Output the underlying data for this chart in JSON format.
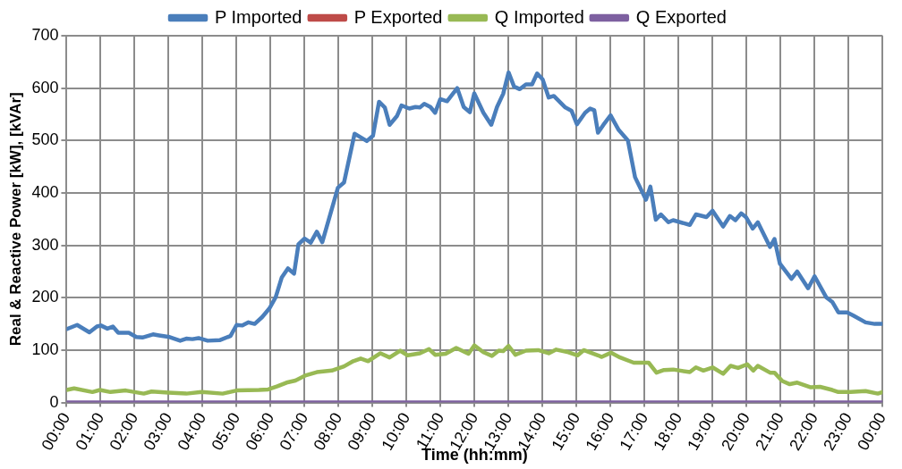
{
  "chart_data": {
    "type": "line",
    "xlabel": "Time (hh:mm)",
    "ylabel": "Real & Reactive Power [kW], [kVAr]",
    "xlim": [
      0,
      24
    ],
    "xticks": [
      {
        "value": 0,
        "label": "00:00"
      },
      {
        "value": 1,
        "label": "01:00"
      },
      {
        "value": 2,
        "label": "02:00"
      },
      {
        "value": 3,
        "label": "03:00"
      },
      {
        "value": 4,
        "label": "04:00"
      },
      {
        "value": 5,
        "label": "05:00"
      },
      {
        "value": 6,
        "label": "06:00"
      },
      {
        "value": 7,
        "label": "07:00"
      },
      {
        "value": 8,
        "label": "08:00"
      },
      {
        "value": 9,
        "label": "09:00"
      },
      {
        "value": 10,
        "label": "10:00"
      },
      {
        "value": 11,
        "label": "11:00"
      },
      {
        "value": 12,
        "label": "12:00"
      },
      {
        "value": 13,
        "label": "13:00"
      },
      {
        "value": 14,
        "label": "14:00"
      },
      {
        "value": 15,
        "label": "15:00"
      },
      {
        "value": 16,
        "label": "16:00"
      },
      {
        "value": 17,
        "label": "17:00"
      },
      {
        "value": 18,
        "label": "18:00"
      },
      {
        "value": 19,
        "label": "19:00"
      },
      {
        "value": 20,
        "label": "20:00"
      },
      {
        "value": 21,
        "label": "21:00"
      },
      {
        "value": 22,
        "label": "22:00"
      },
      {
        "value": 23,
        "label": "23:00"
      },
      {
        "value": 24,
        "label": "00:00"
      }
    ],
    "ylim": [
      0,
      700
    ],
    "yticks": [
      0,
      100,
      200,
      300,
      400,
      500,
      600,
      700
    ],
    "grid": true,
    "legend": "top",
    "marker": "none",
    "line_style": "solid",
    "series": [
      {
        "name": "P Imported",
        "color": "#4a7ebb",
        "x": [
          0,
          0.31,
          0.67,
          0.89,
          1.01,
          1.2,
          1.36,
          1.52,
          1.83,
          2.05,
          2.23,
          2.54,
          2.72,
          3.03,
          3.34,
          3.52,
          3.7,
          3.88,
          4.15,
          4.5,
          4.82,
          5,
          5.17,
          5.35,
          5.53,
          5.75,
          5.97,
          6.15,
          6.33,
          6.51,
          6.69,
          6.82,
          7,
          7.18,
          7.36,
          7.52,
          7.98,
          8.16,
          8.47,
          8.83,
          9.01,
          9.19,
          9.36,
          9.5,
          9.72,
          9.85,
          10.08,
          10.26,
          10.39,
          10.52,
          10.7,
          10.84,
          10.99,
          11.19,
          11.49,
          11.68,
          11.86,
          11.99,
          12.26,
          12.49,
          12.66,
          12.84,
          13,
          13.16,
          13.33,
          13.51,
          13.69,
          13.84,
          14,
          14.18,
          14.33,
          14.67,
          14.85,
          15.01,
          15.25,
          15.4,
          15.52,
          15.63,
          15.79,
          16,
          16.24,
          16.51,
          16.72,
          17.04,
          17.17,
          17.33,
          17.48,
          17.7,
          17.84,
          18.33,
          18.51,
          18.82,
          19,
          19.31,
          19.51,
          19.67,
          19.84,
          19.98,
          20.18,
          20.33,
          20.69,
          20.82,
          20.98,
          21.32,
          21.49,
          21.81,
          22,
          22.34,
          22.52,
          22.7,
          22.96,
          23.14,
          23.5,
          23.77,
          24
        ],
        "values": [
          140,
          148,
          134,
          145,
          147,
          141,
          145,
          133,
          133,
          125,
          124,
          130,
          128,
          125,
          118,
          122,
          121,
          123,
          118,
          119,
          127,
          148,
          147,
          153,
          150,
          163,
          180,
          201,
          239,
          256,
          246,
          302,
          313,
          305,
          326,
          306,
          410,
          420,
          513,
          499,
          509,
          574,
          563,
          530,
          547,
          567,
          561,
          564,
          563,
          570,
          564,
          553,
          579,
          575,
          600,
          564,
          554,
          590,
          553,
          530,
          564,
          589,
          630,
          603,
          598,
          607,
          607,
          628,
          617,
          582,
          585,
          563,
          557,
          531,
          553,
          561,
          558,
          515,
          530,
          548,
          520,
          500,
          430,
          387,
          412,
          349,
          359,
          344,
          348,
          339,
          359,
          354,
          366,
          336,
          356,
          348,
          361,
          354,
          332,
          344,
          297,
          312,
          265,
          236,
          250,
          218,
          241,
          201,
          192,
          172,
          172,
          166,
          153,
          150,
          150
        ]
      },
      {
        "name": "P Exported",
        "color": "#be4b48"
      },
      {
        "name": "Q Imported",
        "color": "#98b954",
        "x": [
          0,
          0.22,
          0.76,
          0.98,
          1.29,
          1.74,
          2.27,
          2.5,
          2.99,
          3.52,
          3.97,
          4.59,
          5,
          5.66,
          5.93,
          6.2,
          6.47,
          6.73,
          7.04,
          7.36,
          7.8,
          8.16,
          8.43,
          8.65,
          8.87,
          9.23,
          9.5,
          9.81,
          10.03,
          10.39,
          10.66,
          10.84,
          11.15,
          11.46,
          11.82,
          11.99,
          12.26,
          12.51,
          12.71,
          12.84,
          13,
          13.2,
          13.51,
          13.87,
          14.18,
          14.4,
          14.76,
          15.03,
          15.21,
          15.63,
          15.74,
          16.01,
          16.28,
          16.68,
          17.12,
          17.35,
          17.57,
          17.84,
          18.33,
          18.51,
          18.73,
          19,
          19.31,
          19.53,
          19.75,
          20.02,
          20.2,
          20.33,
          20.69,
          20.82,
          21.05,
          21.27,
          21.49,
          21.89,
          22.16,
          22.52,
          22.7,
          23.06,
          23.5,
          23.86,
          24
        ],
        "values": [
          24,
          27,
          20,
          24,
          20,
          23,
          17,
          21,
          19,
          17,
          20,
          17,
          23,
          24,
          25,
          31,
          38,
          42,
          52,
          58,
          61,
          69,
          79,
          84,
          79,
          94,
          86,
          99,
          90,
          94,
          102,
          91,
          93,
          104,
          93,
          109,
          96,
          89,
          99,
          98,
          108,
          91,
          99,
          100,
          94,
          101,
          96,
          90,
          100,
          90,
          87,
          95,
          86,
          76,
          76,
          57,
          62,
          63,
          58,
          67,
          61,
          67,
          55,
          70,
          66,
          73,
          61,
          70,
          57,
          57,
          41,
          35,
          38,
          29,
          30,
          24,
          20,
          20,
          22,
          17,
          20
        ]
      },
      {
        "name": "Q Exported",
        "color": "#7d60a0",
        "x": [
          0,
          24
        ],
        "values": [
          0,
          0
        ]
      }
    ]
  }
}
